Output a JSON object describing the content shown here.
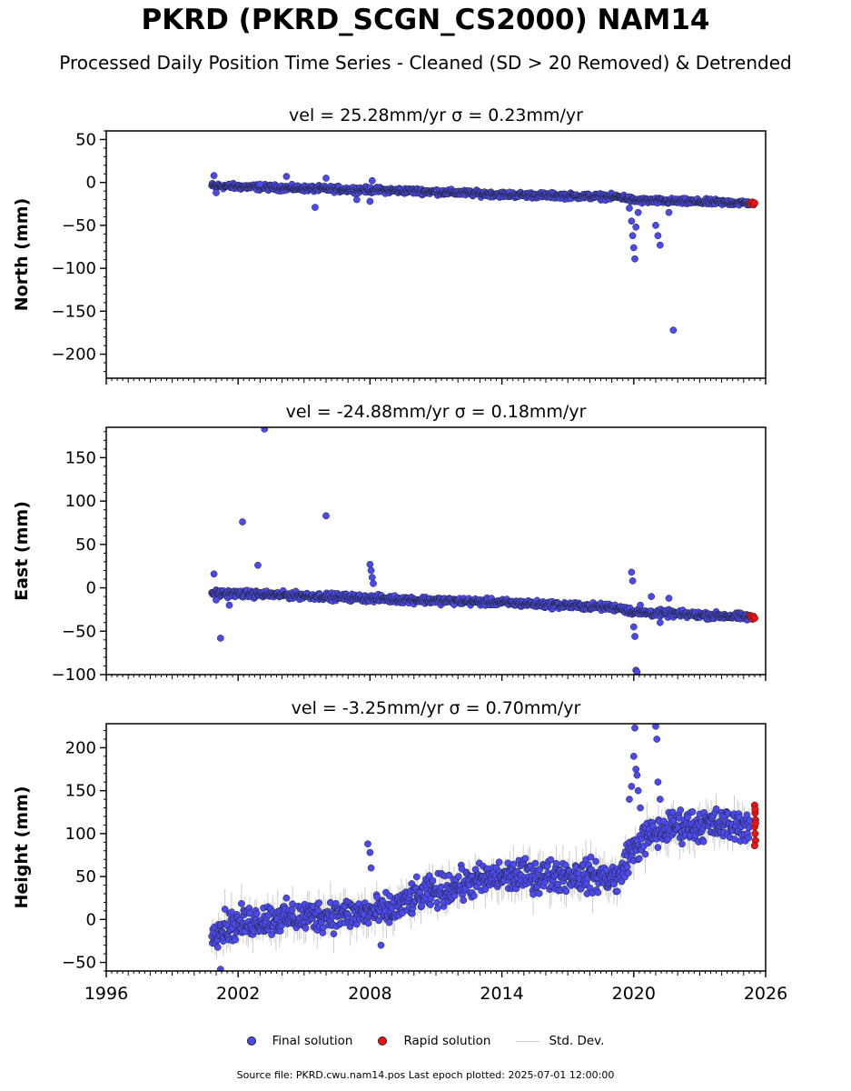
{
  "title": "PKRD (PKRD_SCGN_CS2000) NAM14",
  "subtitle": "Processed Daily Position Time Series - Cleaned (SD > 20 Removed) & Detrended",
  "footer": "Source file: PKRD.cwu.nam14.pos  Last epoch plotted: 2025-07-01 12:00:00",
  "legend": {
    "final": "Final solution",
    "rapid": "Rapid solution",
    "std": "Std. Dev."
  },
  "colors": {
    "final": "#4a4af0",
    "rapid": "#ee1111",
    "std": "#cccccc",
    "edge": "#222222"
  },
  "chart_data": [
    {
      "type": "scatter",
      "panel": "north",
      "title": "vel = 25.28mm/yr   σ = 0.23mm/yr",
      "ylabel": "North (mm)",
      "xlim": [
        1996,
        2026
      ],
      "ylim": [
        -228,
        60
      ],
      "yticks": [
        50,
        0,
        -50,
        -100,
        -150,
        -200
      ],
      "xticks": [],
      "trend": [
        [
          2000.8,
          -4
        ],
        [
          2005,
          -7
        ],
        [
          2010,
          -10
        ],
        [
          2014,
          -14
        ],
        [
          2019.5,
          -17
        ],
        [
          2020,
          -21
        ],
        [
          2025.5,
          -24
        ]
      ],
      "noise": 2.5,
      "outliers": [
        [
          2000.9,
          8
        ],
        [
          2001.0,
          -12
        ],
        [
          2003.0,
          -2
        ],
        [
          2004.2,
          7
        ],
        [
          2005.5,
          -29
        ],
        [
          2006.0,
          5
        ],
        [
          2007.4,
          -20
        ],
        [
          2008.0,
          -22
        ],
        [
          2008.1,
          2
        ],
        [
          2019.8,
          -30
        ],
        [
          2019.9,
          -45
        ],
        [
          2019.95,
          -62
        ],
        [
          2020.0,
          -76
        ],
        [
          2020.05,
          -89
        ],
        [
          2020.1,
          -52
        ],
        [
          2020.2,
          -35
        ],
        [
          2021.0,
          -50
        ],
        [
          2021.1,
          -62
        ],
        [
          2021.2,
          -73
        ],
        [
          2021.6,
          -35
        ],
        [
          2021.8,
          -172
        ]
      ],
      "rapid": [
        [
          2025.3,
          -24
        ],
        [
          2025.35,
          -25
        ],
        [
          2025.4,
          -23
        ],
        [
          2025.45,
          -26
        ],
        [
          2025.5,
          -24
        ]
      ]
    },
    {
      "type": "scatter",
      "panel": "east",
      "title": "vel = -24.88mm/yr   σ = 0.18mm/yr",
      "ylabel": "East (mm)",
      "xlim": [
        1996,
        2026
      ],
      "ylim": [
        -100,
        185
      ],
      "yticks": [
        150,
        100,
        50,
        0,
        -50,
        -100
      ],
      "xticks": [],
      "trend": [
        [
          2000.8,
          -6
        ],
        [
          2005,
          -9
        ],
        [
          2009,
          -13
        ],
        [
          2014,
          -17
        ],
        [
          2019.4,
          -23
        ],
        [
          2020,
          -28
        ],
        [
          2025.5,
          -34
        ]
      ],
      "noise": 3,
      "outliers": [
        [
          2000.9,
          16
        ],
        [
          2001.0,
          -14
        ],
        [
          2001.6,
          -20
        ],
        [
          2002.2,
          76
        ],
        [
          2002.9,
          26
        ],
        [
          2003.2,
          183
        ],
        [
          2006.0,
          83
        ],
        [
          2008.0,
          27
        ],
        [
          2008.05,
          20
        ],
        [
          2008.1,
          12
        ],
        [
          2008.15,
          5
        ],
        [
          2019.9,
          18
        ],
        [
          2019.95,
          8
        ],
        [
          2020.0,
          -45
        ],
        [
          2020.05,
          -56
        ],
        [
          2020.1,
          -95
        ],
        [
          2020.15,
          -97
        ],
        [
          2020.3,
          -20
        ],
        [
          2020.8,
          -10
        ],
        [
          2021.2,
          -40
        ],
        [
          2021.6,
          -12
        ],
        [
          2001.2,
          -58
        ]
      ],
      "rapid": [
        [
          2025.3,
          -32
        ],
        [
          2025.35,
          -34
        ],
        [
          2025.4,
          -36
        ],
        [
          2025.45,
          -33
        ],
        [
          2025.5,
          -35
        ]
      ]
    },
    {
      "type": "scatter",
      "panel": "height",
      "title": "vel = -3.25mm/yr   σ = 0.70mm/yr",
      "ylabel": "Height (mm)",
      "xlim": [
        1996,
        2026
      ],
      "ylim": [
        -60,
        228
      ],
      "yticks": [
        200,
        150,
        100,
        50,
        0,
        -50
      ],
      "xticks": [
        1996,
        2002,
        2008,
        2014,
        2020,
        2026
      ],
      "trend": [
        [
          2000.8,
          -12
        ],
        [
          2003,
          0
        ],
        [
          2006,
          5
        ],
        [
          2009,
          10
        ],
        [
          2010,
          25
        ],
        [
          2012,
          40
        ],
        [
          2014,
          50
        ],
        [
          2017,
          52
        ],
        [
          2019.4,
          48
        ],
        [
          2019.6,
          70
        ],
        [
          2020.5,
          95
        ],
        [
          2022,
          110
        ],
        [
          2025.5,
          110
        ]
      ],
      "noise": 14,
      "outliers": [
        [
          2001.2,
          -58
        ],
        [
          2007.9,
          88
        ],
        [
          2008.0,
          78
        ],
        [
          2008.05,
          60
        ],
        [
          2008.5,
          -30
        ],
        [
          2019.8,
          140
        ],
        [
          2019.9,
          155
        ],
        [
          2020.0,
          190
        ],
        [
          2020.05,
          223
        ],
        [
          2020.1,
          175
        ],
        [
          2020.15,
          168
        ],
        [
          2020.2,
          150
        ],
        [
          2020.3,
          130
        ],
        [
          2021.0,
          225
        ],
        [
          2021.05,
          210
        ],
        [
          2021.1,
          160
        ],
        [
          2021.2,
          140
        ]
      ],
      "rapid": [
        [
          2025.5,
          133
        ],
        [
          2025.52,
          124
        ],
        [
          2025.54,
          116
        ],
        [
          2025.5,
          108
        ],
        [
          2025.52,
          100
        ],
        [
          2025.54,
          92
        ],
        [
          2025.5,
          86
        ],
        [
          2025.52,
          128
        ],
        [
          2025.54,
          112
        ]
      ]
    }
  ]
}
